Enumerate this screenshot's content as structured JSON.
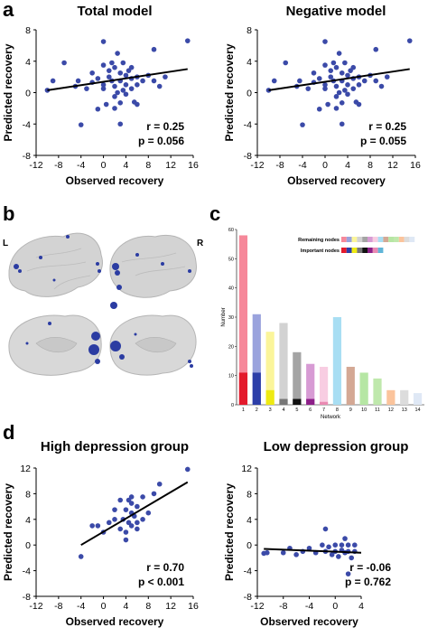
{
  "panels": {
    "a": "a",
    "b": "b",
    "c": "c",
    "d": "d",
    "brain_left": "L",
    "brain_right": "R"
  },
  "colors": {
    "dot": "#3b4aa8",
    "line": "#000000"
  },
  "chart_data": [
    {
      "id": "total",
      "type": "scatter",
      "title": "Total model",
      "xlabel": "Observed recovery",
      "ylabel": "Predicted recovery",
      "xlim": [
        -12,
        16
      ],
      "ylim": [
        -8,
        8
      ],
      "xticks": [
        "-12",
        "-8",
        "-4",
        "0",
        "4",
        "8",
        "12",
        "16"
      ],
      "yticks": [
        "-8",
        "-4",
        "0",
        "4",
        "8"
      ],
      "stat_r": "r = 0.25",
      "stat_p": "p = 0.056",
      "fit": [
        [
          -10,
          0.3
        ],
        [
          15,
          3.0
        ]
      ],
      "points": [
        [
          -10,
          0.3
        ],
        [
          -9,
          1.5
        ],
        [
          -7,
          3.8
        ],
        [
          -5,
          0.8
        ],
        [
          -4.5,
          1.5
        ],
        [
          -4,
          -4.1
        ],
        [
          -3,
          0.5
        ],
        [
          -2,
          2.5
        ],
        [
          -2,
          1.3
        ],
        [
          -1,
          1.8
        ],
        [
          -1,
          -2.1
        ],
        [
          0,
          6.5
        ],
        [
          0,
          3.5
        ],
        [
          0,
          1
        ],
        [
          0,
          0.5
        ],
        [
          0.5,
          -1.5
        ],
        [
          1,
          2.8
        ],
        [
          1,
          2
        ],
        [
          1.5,
          3.8
        ],
        [
          1.5,
          1.5
        ],
        [
          2,
          0.8
        ],
        [
          2,
          -0.5
        ],
        [
          2,
          3.2
        ],
        [
          2.5,
          5
        ],
        [
          2.5,
          0
        ],
        [
          3,
          2.5
        ],
        [
          3,
          1.5
        ],
        [
          3,
          -1.3
        ],
        [
          3.5,
          3.8
        ],
        [
          3.5,
          0.3
        ],
        [
          4,
          2.2
        ],
        [
          4,
          1
        ],
        [
          4,
          -0.2
        ],
        [
          4.5,
          2.8
        ],
        [
          5,
          1.8
        ],
        [
          5,
          3.2
        ],
        [
          5,
          0.5
        ],
        [
          5.5,
          -1.2
        ],
        [
          6,
          2
        ],
        [
          6,
          1
        ],
        [
          3,
          -4
        ],
        [
          7,
          1.5
        ],
        [
          8,
          2.2
        ],
        [
          9,
          5.5
        ],
        [
          9,
          1.5
        ],
        [
          10,
          0.8
        ],
        [
          11,
          2
        ],
        [
          15,
          6.6
        ],
        [
          2,
          -2
        ],
        [
          6,
          -1.5
        ]
      ]
    },
    {
      "id": "negative",
      "type": "scatter",
      "title": "Negative model",
      "xlabel": "Observed recovery",
      "ylabel": "Predicted recovery",
      "xlim": [
        -12,
        16
      ],
      "ylim": [
        -8,
        8
      ],
      "xticks": [
        "-12",
        "-8",
        "-4",
        "0",
        "4",
        "8",
        "12",
        "16"
      ],
      "yticks": [
        "-8",
        "-4",
        "0",
        "4",
        "8"
      ],
      "stat_r": "r = 0.25",
      "stat_p": "p = 0.055",
      "fit": [
        [
          -10,
          0.3
        ],
        [
          15,
          3.0
        ]
      ],
      "points": [
        [
          -10,
          0.3
        ],
        [
          -9,
          1.5
        ],
        [
          -7,
          3.8
        ],
        [
          -5,
          0.8
        ],
        [
          -4.5,
          1.5
        ],
        [
          -4,
          -4.1
        ],
        [
          -3,
          0.5
        ],
        [
          -2,
          2.5
        ],
        [
          -2,
          1.3
        ],
        [
          -1,
          1.8
        ],
        [
          -1,
          -2.1
        ],
        [
          0,
          6.5
        ],
        [
          0,
          3.5
        ],
        [
          0,
          1
        ],
        [
          0,
          0.5
        ],
        [
          0.5,
          -1.5
        ],
        [
          1,
          2.8
        ],
        [
          1,
          2
        ],
        [
          1.5,
          3.8
        ],
        [
          1.5,
          1.5
        ],
        [
          2,
          0.8
        ],
        [
          2,
          -0.5
        ],
        [
          2,
          3.2
        ],
        [
          2.5,
          5
        ],
        [
          2.5,
          0
        ],
        [
          3,
          2.5
        ],
        [
          3,
          1.5
        ],
        [
          3,
          -1.3
        ],
        [
          3.5,
          3.8
        ],
        [
          3.5,
          0.3
        ],
        [
          4,
          2.2
        ],
        [
          4,
          1
        ],
        [
          4,
          -0.2
        ],
        [
          4.5,
          2.8
        ],
        [
          5,
          1.8
        ],
        [
          5,
          3.2
        ],
        [
          5,
          0.5
        ],
        [
          5.5,
          -1.2
        ],
        [
          6,
          2
        ],
        [
          6,
          1
        ],
        [
          3,
          -4
        ],
        [
          7,
          1.5
        ],
        [
          8,
          2.2
        ],
        [
          9,
          5.5
        ],
        [
          9,
          1.5
        ],
        [
          10,
          0.8
        ],
        [
          11,
          2
        ],
        [
          15,
          6.6
        ],
        [
          2,
          -2
        ],
        [
          6,
          -1.5
        ]
      ]
    },
    {
      "id": "network",
      "type": "bar",
      "xlabel": "Network",
      "ylabel": "Number",
      "ylim": [
        0,
        60
      ],
      "yticks": [
        "0",
        "10",
        "20",
        "30",
        "40",
        "50",
        "60"
      ],
      "categories": [
        "1",
        "2",
        "3",
        "4",
        "5",
        "6",
        "7",
        "8",
        "9",
        "10",
        "11",
        "12",
        "13",
        "14"
      ],
      "legend_remaining": "Remaining nodes",
      "legend_important": "Important nodes",
      "series": [
        {
          "name": "Remaining nodes",
          "values": [
            58,
            31,
            25,
            28,
            18,
            14,
            13,
            30,
            13,
            11,
            9,
            5,
            5,
            4
          ],
          "colors": [
            "#f6889a",
            "#9aa3dd",
            "#fbf59a",
            "#d2d2d2",
            "#a4a4a4",
            "#d79bd4",
            "#f8cde2",
            "#a8def3",
            "#d4a894",
            "#b6e6a4",
            "#bfe8ac",
            "#fbc49c",
            "#dcdcdc",
            "#dfe8f5"
          ]
        },
        {
          "name": "Important nodes",
          "values": [
            11,
            11,
            5,
            2,
            2,
            2,
            1,
            0,
            0,
            0,
            0,
            0,
            0,
            0
          ],
          "colors": [
            "#e31a2c",
            "#2c3ea8",
            "#eeea12",
            "#777777",
            "#111111",
            "#8c1f88",
            "#e98ab2",
            "#5fb5d8",
            "#a65a2c",
            "#3ca03c",
            "#74c374",
            "#f28c3c",
            "#bcbcbc",
            "#a9c4e8"
          ]
        }
      ]
    },
    {
      "id": "high",
      "type": "scatter",
      "title": "High depression group",
      "xlabel": "Observed recovery",
      "ylabel": "Predicted recovery",
      "xlim": [
        -12,
        16
      ],
      "ylim": [
        -8,
        12
      ],
      "xticks": [
        "-12",
        "-8",
        "-4",
        "0",
        "4",
        "8",
        "12",
        "16"
      ],
      "yticks": [
        "-8",
        "-4",
        "0",
        "4",
        "8",
        "12"
      ],
      "stat_r": "r = 0.70",
      "stat_p": "p < 0.001",
      "fit": [
        [
          -4,
          0.0
        ],
        [
          15,
          9.8
        ]
      ],
      "points": [
        [
          -4,
          -1.8
        ],
        [
          -2,
          3
        ],
        [
          -1,
          3
        ],
        [
          0,
          2
        ],
        [
          1,
          3.5
        ],
        [
          2,
          4
        ],
        [
          2,
          5.5
        ],
        [
          3,
          2.5
        ],
        [
          3,
          7
        ],
        [
          3.5,
          4
        ],
        [
          4,
          0.8
        ],
        [
          4,
          2
        ],
        [
          4,
          5.5
        ],
        [
          4.5,
          7
        ],
        [
          4.5,
          3.5
        ],
        [
          5,
          3
        ],
        [
          5,
          5
        ],
        [
          5,
          6.5
        ],
        [
          5,
          7.5
        ],
        [
          5.5,
          4.5
        ],
        [
          6,
          3.5
        ],
        [
          6,
          6
        ],
        [
          6,
          2.5
        ],
        [
          7,
          4
        ],
        [
          7,
          7.5
        ],
        [
          8,
          5
        ],
        [
          9,
          8
        ],
        [
          10,
          9.5
        ],
        [
          15,
          11.8
        ]
      ]
    },
    {
      "id": "low",
      "type": "scatter",
      "title": "Low depression group",
      "xlabel": "Observed recovery",
      "ylabel": "Predicted recovery",
      "xlim": [
        -12,
        4
      ],
      "ylim": [
        -8,
        12
      ],
      "xticks": [
        "-12",
        "-8",
        "-4",
        "0",
        "4"
      ],
      "yticks": [
        "-8",
        "-4",
        "0",
        "4",
        "8",
        "12"
      ],
      "stat_r": "r = -0.06",
      "stat_p": "p = 0.762",
      "fit": [
        [
          -11,
          -0.6
        ],
        [
          4,
          -1.2
        ]
      ],
      "points": [
        [
          -11,
          -1.3
        ],
        [
          -10.5,
          -1.2
        ],
        [
          -8,
          -1.2
        ],
        [
          -7,
          -0.5
        ],
        [
          -6,
          -1.5
        ],
        [
          -5,
          -1
        ],
        [
          -4,
          -0.5
        ],
        [
          -3,
          -1.2
        ],
        [
          -2,
          0
        ],
        [
          -1.5,
          2.5
        ],
        [
          -1.5,
          -1
        ],
        [
          -1,
          -0.3
        ],
        [
          -0.5,
          -1.5
        ],
        [
          0,
          0
        ],
        [
          0,
          -1
        ],
        [
          0.5,
          -1.8
        ],
        [
          1,
          0
        ],
        [
          1,
          -0.8
        ],
        [
          1.5,
          -1.2
        ],
        [
          1.5,
          1
        ],
        [
          2,
          0
        ],
        [
          2,
          -1
        ],
        [
          2,
          -4.5
        ],
        [
          2.5,
          -2
        ],
        [
          3,
          -1
        ],
        [
          3,
          0
        ]
      ]
    }
  ]
}
